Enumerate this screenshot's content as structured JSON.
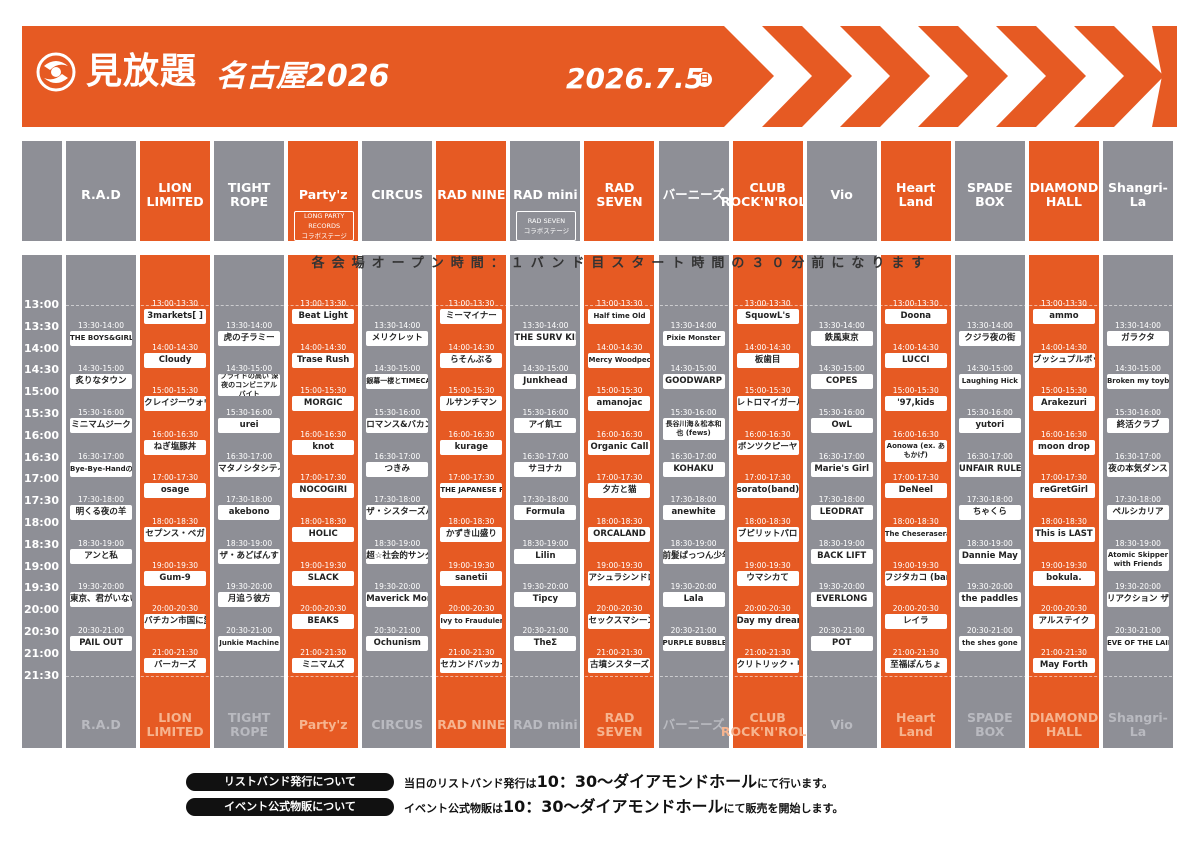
{
  "header": {
    "title": "見放題",
    "subtitle": "名古屋2026",
    "date": "2026.7.5",
    "day": "日",
    "brand_color": "#e65a23"
  },
  "notice": "各会場オープン時間：１バンド目スタート時間の３０分前になります",
  "time_labels": [
    "13:00",
    "13:30",
    "14:00",
    "14:30",
    "15:00",
    "15:30",
    "16:00",
    "16:30",
    "17:00",
    "17:30",
    "18:00",
    "18:30",
    "19:00",
    "19:30",
    "20:00",
    "20:30",
    "21:00",
    "21:30"
  ],
  "venues": [
    {
      "name": "R.A.D",
      "color": "gray",
      "collab": null,
      "slots": [
        {
          "time": "13:30-14:00",
          "act": "THE BOYS&GIRLS",
          "start": 1
        },
        {
          "time": "14:30-15:00",
          "act": "炙りなタウン",
          "start": 3
        },
        {
          "time": "15:30-16:00",
          "act": "ミニマムジーク",
          "start": 5
        },
        {
          "time": "16:30-17:00",
          "act": "Bye-Bye-Handの方程式",
          "start": 7
        },
        {
          "time": "17:30-18:00",
          "act": "明くる夜の羊",
          "start": 9
        },
        {
          "time": "18:30-19:00",
          "act": "アンと私",
          "start": 11
        },
        {
          "time": "19:30-20:00",
          "act": "東京、君がいない街",
          "start": 13
        },
        {
          "time": "20:30-21:00",
          "act": "PAIL OUT",
          "start": 15
        }
      ]
    },
    {
      "name": "LION LIMITED",
      "color": "orange",
      "collab": null,
      "slots": [
        {
          "time": "13:00-13:30",
          "act": "3markets[ ]",
          "start": 0
        },
        {
          "time": "14:00-14:30",
          "act": "Cloudy",
          "start": 2
        },
        {
          "time": "15:00-15:30",
          "act": "クレイジーウォウウォ!!",
          "start": 4
        },
        {
          "time": "16:00-16:30",
          "act": "ねぎ塩豚丼",
          "start": 6
        },
        {
          "time": "17:00-17:30",
          "act": "osage",
          "start": 8
        },
        {
          "time": "18:00-18:30",
          "act": "セプンス・ベガ",
          "start": 10
        },
        {
          "time": "19:00-19:30",
          "act": "Gum-9",
          "start": 12
        },
        {
          "time": "20:00-20:30",
          "act": "バチカン市国に愛されたい",
          "start": 14
        },
        {
          "time": "21:00-21:30",
          "act": "バーカーズ",
          "start": 16
        }
      ]
    },
    {
      "name": "TIGHT ROPE",
      "color": "gray",
      "collab": null,
      "slots": [
        {
          "time": "13:30-14:00",
          "act": "虎の子ラミー",
          "start": 1
        },
        {
          "time": "14:30-15:00",
          "act": "プライドの高い 深夜のコンビニアルバイト",
          "start": 3,
          "two": true
        },
        {
          "time": "15:30-16:00",
          "act": "urei",
          "start": 5
        },
        {
          "time": "16:30-17:00",
          "act": "マタノシタシティー",
          "start": 7
        },
        {
          "time": "17:30-18:00",
          "act": "akebono",
          "start": 9
        },
        {
          "time": "18:30-19:00",
          "act": "ザ・あどばんす",
          "start": 11
        },
        {
          "time": "19:30-20:00",
          "act": "月追う彼方",
          "start": 13
        },
        {
          "time": "20:30-21:00",
          "act": "Junkie Machine",
          "start": 15
        }
      ]
    },
    {
      "name": "Party'z",
      "color": "orange",
      "collab": [
        "LONG PARTY RECORDS",
        "コラボステージ"
      ],
      "slots": [
        {
          "time": "13:00-13:30",
          "act": "Beat Light",
          "start": 0
        },
        {
          "time": "14:00-14:30",
          "act": "Trase Rush",
          "start": 2
        },
        {
          "time": "15:00-15:30",
          "act": "MORGIC",
          "start": 4
        },
        {
          "time": "16:00-16:30",
          "act": "knot",
          "start": 6
        },
        {
          "time": "17:00-17:30",
          "act": "NOCOGIRI",
          "start": 8
        },
        {
          "time": "18:00-18:30",
          "act": "HOLIC",
          "start": 10
        },
        {
          "time": "19:00-19:30",
          "act": "SLACK",
          "start": 12
        },
        {
          "time": "20:00-20:30",
          "act": "BEAKS",
          "start": 14
        },
        {
          "time": "21:00-21:30",
          "act": "ミニマムズ",
          "start": 16
        }
      ]
    },
    {
      "name": "CIRCUS",
      "color": "gray",
      "collab": null,
      "slots": [
        {
          "time": "13:30-14:00",
          "act": "メリクレット",
          "start": 1
        },
        {
          "time": "14:30-15:00",
          "act": "銀幕一楼とTIMECAFE",
          "start": 3
        },
        {
          "time": "15:30-16:00",
          "act": "ロマンス&バカンス",
          "start": 5
        },
        {
          "time": "16:30-17:00",
          "act": "つきみ",
          "start": 7
        },
        {
          "time": "17:30-18:00",
          "act": "ザ・シスターズハイ",
          "start": 9
        },
        {
          "time": "18:30-19:00",
          "act": "超☆社会的サンダル",
          "start": 11
        },
        {
          "time": "19:30-20:00",
          "act": "Maverick Mom",
          "start": 13
        },
        {
          "time": "20:30-21:00",
          "act": "Ochunism",
          "start": 15
        }
      ]
    },
    {
      "name": "RAD NINE",
      "color": "orange",
      "collab": null,
      "slots": [
        {
          "time": "13:00-13:30",
          "act": "ミーマイナー",
          "start": 0
        },
        {
          "time": "14:00-14:30",
          "act": "らそんぶる",
          "start": 2
        },
        {
          "time": "15:00-15:30",
          "act": "ルサンチマン",
          "start": 4
        },
        {
          "time": "16:00-16:30",
          "act": "kurage",
          "start": 6
        },
        {
          "time": "17:00-17:30",
          "act": "THE JAPANESE PRIDE",
          "start": 8
        },
        {
          "time": "18:00-18:30",
          "act": "かずき山盛り",
          "start": 10
        },
        {
          "time": "19:00-19:30",
          "act": "sanetii",
          "start": 12
        },
        {
          "time": "20:00-20:30",
          "act": "Ivy to Fraudulent Game",
          "start": 14
        },
        {
          "time": "21:00-21:30",
          "act": "セカンドバッカー",
          "start": 16
        }
      ]
    },
    {
      "name": "RAD mini",
      "color": "gray",
      "collab": [
        "RAD SEVEN",
        "コラボステージ"
      ],
      "slots": [
        {
          "time": "13:30-14:00",
          "act": "THE SURV KID",
          "start": 1
        },
        {
          "time": "14:30-15:00",
          "act": "Junkhead",
          "start": 3
        },
        {
          "time": "15:30-16:00",
          "act": "アイ飢エ",
          "start": 5
        },
        {
          "time": "16:30-17:00",
          "act": "サヨナカ",
          "start": 7
        },
        {
          "time": "17:30-18:00",
          "act": "Formula",
          "start": 9
        },
        {
          "time": "18:30-19:00",
          "act": "Lilin",
          "start": 11
        },
        {
          "time": "19:30-20:00",
          "act": "Tipcy",
          "start": 13
        },
        {
          "time": "20:30-21:00",
          "act": "TheΣ",
          "start": 15
        }
      ]
    },
    {
      "name": "RAD SEVEN",
      "color": "orange",
      "collab": null,
      "slots": [
        {
          "time": "13:00-13:30",
          "act": "Half time Old",
          "start": 0
        },
        {
          "time": "14:00-14:30",
          "act": "Mercy Woodpecker",
          "start": 2
        },
        {
          "time": "15:00-15:30",
          "act": "amanojac",
          "start": 4
        },
        {
          "time": "16:00-16:30",
          "act": "Organic Call",
          "start": 6
        },
        {
          "time": "17:00-17:30",
          "act": "夕方と猫",
          "start": 8
        },
        {
          "time": "18:00-18:30",
          "act": "ORCALAND",
          "start": 10
        },
        {
          "time": "19:00-19:30",
          "act": "アシュラシンドローム",
          "start": 12
        },
        {
          "time": "20:00-20:30",
          "act": "セックスマシーン!!",
          "start": 14
        },
        {
          "time": "21:00-21:30",
          "act": "古墳シスターズ",
          "start": 16
        }
      ]
    },
    {
      "name": "バーニーズ",
      "color": "gray",
      "collab": null,
      "slots": [
        {
          "time": "13:30-14:00",
          "act": "Pixie Monster",
          "start": 1
        },
        {
          "time": "14:30-15:00",
          "act": "GOODWARP",
          "start": 3
        },
        {
          "time": "15:30-16:00",
          "act": "長谷川海＆松本和也 (fews)",
          "start": 5,
          "two": true
        },
        {
          "time": "16:30-17:00",
          "act": "KOHAKU",
          "start": 7
        },
        {
          "time": "17:30-18:00",
          "act": "anewhite",
          "start": 9
        },
        {
          "time": "18:30-19:00",
          "act": "前髪ぱっつん少年",
          "start": 11
        },
        {
          "time": "19:30-20:00",
          "act": "Lala",
          "start": 13
        },
        {
          "time": "20:30-21:00",
          "act": "PURPLE BUBBLE",
          "start": 15
        }
      ]
    },
    {
      "name": "CLUB ROCK'N'ROLL",
      "color": "orange",
      "collab": null,
      "slots": [
        {
          "time": "13:00-13:30",
          "act": "SquowL's",
          "start": 0
        },
        {
          "time": "14:00-14:30",
          "act": "板歯目",
          "start": 2
        },
        {
          "time": "15:00-15:30",
          "act": "レトロマイガール!!",
          "start": 4
        },
        {
          "time": "16:00-16:30",
          "act": "ボンツクピーヤ",
          "start": 6
        },
        {
          "time": "17:00-17:30",
          "act": "sorato(band)",
          "start": 8
        },
        {
          "time": "18:00-18:30",
          "act": "ブピリットパロ",
          "start": 10
        },
        {
          "time": "19:00-19:30",
          "act": "ウマシカて",
          "start": 12
        },
        {
          "time": "20:00-20:30",
          "act": "Day my dream",
          "start": 14
        },
        {
          "time": "21:00-21:30",
          "act": "クリトリック・リス",
          "start": 16
        }
      ]
    },
    {
      "name": "Vio",
      "color": "gray",
      "collab": null,
      "slots": [
        {
          "time": "13:30-14:00",
          "act": "鉄風東京",
          "start": 1
        },
        {
          "time": "14:30-15:00",
          "act": "COPES",
          "start": 3
        },
        {
          "time": "15:30-16:00",
          "act": "OwL",
          "start": 5
        },
        {
          "time": "16:30-17:00",
          "act": "Marie's Girl",
          "start": 7
        },
        {
          "time": "17:30-18:00",
          "act": "LEODRAT",
          "start": 9
        },
        {
          "time": "18:30-19:00",
          "act": "BACK LIFT",
          "start": 11
        },
        {
          "time": "19:30-20:00",
          "act": "EVERLONG",
          "start": 13
        },
        {
          "time": "20:30-21:00",
          "act": "POT",
          "start": 15
        }
      ]
    },
    {
      "name": "Heart Land",
      "color": "orange",
      "collab": null,
      "slots": [
        {
          "time": "13:00-13:30",
          "act": "Doona",
          "start": 0
        },
        {
          "time": "14:00-14:30",
          "act": "LUCCI",
          "start": 2
        },
        {
          "time": "15:00-15:30",
          "act": "'97,kids",
          "start": 4
        },
        {
          "time": "16:00-16:30",
          "act": "Aonowa (ex. あもかげ)",
          "start": 6,
          "two": true
        },
        {
          "time": "17:00-17:30",
          "act": "DeNeel",
          "start": 8
        },
        {
          "time": "18:00-18:30",
          "act": "The Cheserasera",
          "start": 10
        },
        {
          "time": "19:00-19:30",
          "act": "フジタカコ (band)",
          "start": 12
        },
        {
          "time": "20:00-20:30",
          "act": "レイラ",
          "start": 14
        },
        {
          "time": "21:00-21:30",
          "act": "至福ぽんちょ",
          "start": 16
        }
      ]
    },
    {
      "name": "SPADE BOX",
      "color": "gray",
      "collab": null,
      "slots": [
        {
          "time": "13:30-14:00",
          "act": "クジラ夜の街",
          "start": 1
        },
        {
          "time": "14:30-15:00",
          "act": "Laughing Hick",
          "start": 3
        },
        {
          "time": "15:30-16:00",
          "act": "yutori",
          "start": 5
        },
        {
          "time": "16:30-17:00",
          "act": "UNFAIR RULE",
          "start": 7
        },
        {
          "time": "17:30-18:00",
          "act": "ちゃくら",
          "start": 9
        },
        {
          "time": "18:30-19:00",
          "act": "Dannie May",
          "start": 11
        },
        {
          "time": "19:30-20:00",
          "act": "the paddles",
          "start": 13
        },
        {
          "time": "20:30-21:00",
          "act": "the shes gone",
          "start": 15
        }
      ]
    },
    {
      "name": "DIAMOND HALL",
      "color": "orange",
      "collab": null,
      "slots": [
        {
          "time": "13:00-13:30",
          "act": "ammo",
          "start": 0
        },
        {
          "time": "14:00-14:30",
          "act": "ブッシュプルボット",
          "start": 2
        },
        {
          "time": "15:00-15:30",
          "act": "Arakezuri",
          "start": 4
        },
        {
          "time": "16:00-16:30",
          "act": "moon drop",
          "start": 6
        },
        {
          "time": "17:00-17:30",
          "act": "reGretGirl",
          "start": 8
        },
        {
          "time": "18:00-18:30",
          "act": "This is LAST",
          "start": 10
        },
        {
          "time": "19:00-19:30",
          "act": "bokula.",
          "start": 12
        },
        {
          "time": "20:00-20:30",
          "act": "アルステイク",
          "start": 14
        },
        {
          "time": "21:00-21:30",
          "act": "May Forth",
          "start": 16
        }
      ]
    },
    {
      "name": "Shangri-La",
      "color": "gray",
      "collab": null,
      "slots": [
        {
          "time": "13:30-14:00",
          "act": "ガラクタ",
          "start": 1
        },
        {
          "time": "14:30-15:00",
          "act": "Broken my toybox",
          "start": 3
        },
        {
          "time": "15:30-16:00",
          "act": "終活クラブ",
          "start": 5
        },
        {
          "time": "16:30-17:00",
          "act": "夜の本気ダンス",
          "start": 7
        },
        {
          "time": "17:30-18:00",
          "act": "ペルシカリア",
          "start": 9
        },
        {
          "time": "18:30-19:00",
          "act": "Atomic Skipper with Friends",
          "start": 11,
          "two": true
        },
        {
          "time": "19:30-20:00",
          "act": "リアクション ザ ブッタ",
          "start": 13
        },
        {
          "time": "20:30-21:00",
          "act": "EVE OF THE LAIN",
          "start": 15
        }
      ]
    }
  ],
  "footer": {
    "wristband_label": "リストバンド発行について",
    "wristband_text_pre": "当日のリストバンド発行は",
    "wristband_text_big": "10：30～ダイアモンドホール",
    "wristband_text_post": "にて行います。",
    "merch_label": "イベント公式物販について",
    "merch_text_pre": "イベント公式物販は",
    "merch_text_big": "10：30～ダイアモンドホール",
    "merch_text_post": "にて販売を開始します。"
  }
}
